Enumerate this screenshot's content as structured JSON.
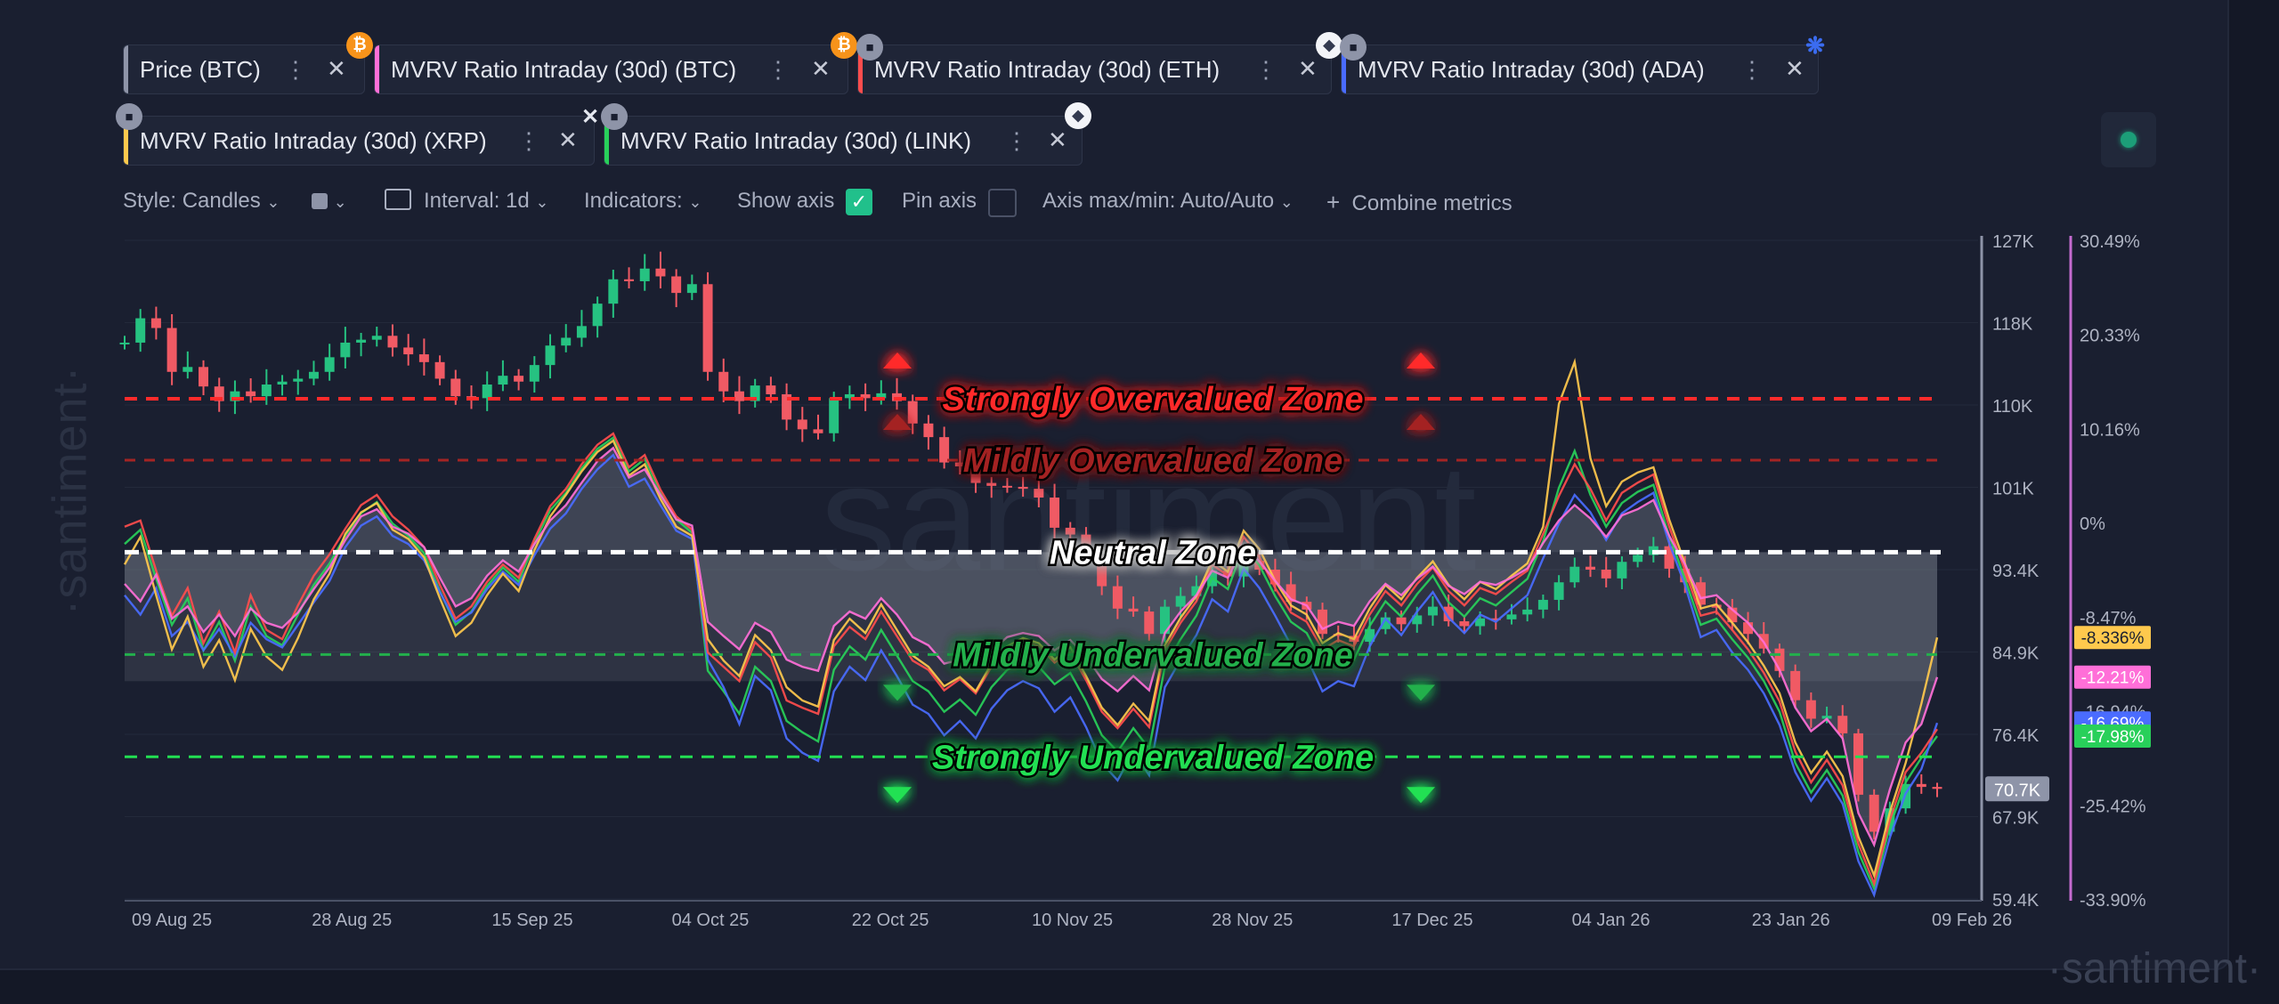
{
  "tabs": [
    {
      "label": "Price (BTC)",
      "color": "#8e94a8",
      "badge": "btc-icon"
    },
    {
      "label": "MVRV Ratio Intraday (30d) (BTC)",
      "color": "#ff6fd8",
      "badge": "btc-icon"
    },
    {
      "label": "MVRV Ratio Intraday (30d) (ETH)",
      "color": "#ff4d4d",
      "badge": "eth-icon"
    },
    {
      "label": "MVRV Ratio Intraday (30d) (ADA)",
      "color": "#4a6cff",
      "badge": "ada-icon"
    },
    {
      "label": "MVRV Ratio Intraday (30d) (XRP)",
      "color": "#ffc94d",
      "badge": "xrp-icon"
    },
    {
      "label": "MVRV Ratio Intraday (30d) (LINK)",
      "color": "#28d05a",
      "badge": "link-icon"
    }
  ],
  "toolbar": {
    "style": "Style: Candles",
    "interval": "Interval: 1d",
    "indicators": "Indicators:",
    "show_axis": "Show axis",
    "show_axis_checked": true,
    "pin_axis": "Pin axis",
    "pin_axis_checked": false,
    "axis_range": "Axis max/min: Auto/Auto",
    "combine": "Combine metrics"
  },
  "watermark": "santiment",
  "colors": {
    "bg": "#1a1f30",
    "candle_up": "#26c281",
    "candle_down": "#f05a64",
    "btc": "#ff6fd8",
    "eth": "#ff4d4d",
    "ada": "#4a6cff",
    "xrp": "#ffc94d",
    "link": "#28d05a"
  },
  "chart_data": {
    "type": "line",
    "x_labels": [
      "09 Aug 25",
      "28 Aug 25",
      "15 Sep 25",
      "04 Oct 25",
      "22 Oct 25",
      "10 Nov 25",
      "28 Nov 25",
      "17 Dec 25",
      "04 Jan 26",
      "23 Jan 26",
      "09 Feb 26"
    ],
    "price_axis": {
      "ticks": [
        "127K",
        "118K",
        "110K",
        "101K",
        "93.4K",
        "84.9K",
        "76.4K",
        "67.9K",
        "59.4K"
      ],
      "range": [
        59400,
        127000
      ]
    },
    "mvrv_axis": {
      "ticks": [
        "30.49%",
        "20.33%",
        "10.16%",
        "0%",
        "-8.47%",
        "-16.94%",
        "-25.42%",
        "-33.90%"
      ],
      "range": [
        -33.9,
        30.49
      ]
    },
    "price_last_label": "70.7K",
    "price_last": 70700,
    "zones": [
      {
        "label": "Strongly Overvalued Zone",
        "value": 15,
        "color": "#ff2b2b",
        "arrow": "up"
      },
      {
        "label": "Mildly Overvalued Zone",
        "value": 9,
        "color": "#a42424",
        "arrow": "up"
      },
      {
        "label": "Neutral Zone",
        "value": 0,
        "color": "#ffffff",
        "arrow": "none"
      },
      {
        "label": "Mildly Undervalued Zone",
        "value": -10,
        "color": "#23b04c",
        "arrow": "down"
      },
      {
        "label": "Strongly Undervalued Zone",
        "value": -20,
        "color": "#22e052",
        "arrow": "down"
      }
    ],
    "series_last_labels": [
      {
        "name": "XRP",
        "label": "-8.336%",
        "value": -8.336,
        "color": "#ffc94d"
      },
      {
        "name": "BTC",
        "label": "-12.21%",
        "value": -12.21,
        "color": "#ff6fd8"
      },
      {
        "name": "ADA",
        "label": "-16.69%",
        "value": -16.69,
        "color": "#4a6cff"
      },
      {
        "name": "LINK",
        "label": "-17.98%",
        "value": -17.98,
        "color": "#28d05a"
      }
    ],
    "price_btc": [
      116500,
      119000,
      118000,
      113500,
      114000,
      112000,
      110500,
      111500,
      111000,
      112200,
      112500,
      112800,
      113500,
      115000,
      116500,
      116800,
      117200,
      116000,
      115300,
      114500,
      112800,
      111000,
      110800,
      112200,
      113100,
      112500,
      114200,
      116200,
      117000,
      118200,
      120500,
      123000,
      122800,
      124100,
      123300,
      121600,
      122500,
      113500,
      111500,
      110500,
      112100,
      111200,
      108600,
      107600,
      107200,
      110800,
      111200,
      110800,
      111300,
      110500,
      108200,
      106800,
      104200,
      103800,
      102100,
      101800,
      101700,
      101500,
      100600,
      97500,
      96800,
      94500,
      91500,
      89200,
      88900,
      86600,
      89400,
      90500,
      91500,
      93100,
      92500,
      94100,
      93200,
      91700,
      89900,
      89100,
      86600,
      86400,
      85800,
      87100,
      88300,
      87600,
      88500,
      89400,
      87900,
      87400,
      88200,
      88100,
      88600,
      89100,
      90100,
      91900,
      93500,
      93200,
      92300,
      94000,
      94700,
      95600,
      93300,
      91900,
      89600,
      89300,
      87800,
      86600,
      85100,
      82800,
      79800,
      77900,
      78200,
      76400,
      70100,
      66300,
      68700,
      71200,
      70900,
      70700
    ],
    "mvrv_btc": [
      -3.1,
      -4.8,
      -2.2,
      -6.5,
      -5.3,
      -7.8,
      -6.1,
      -8.2,
      -5.5,
      -6.9,
      -7.4,
      -5.9,
      -3.6,
      -1.5,
      1.2,
      3.5,
      4.2,
      2.5,
      1.8,
      0.5,
      -2.5,
      -5.3,
      -4.5,
      -2.3,
      -0.8,
      -1.9,
      0.8,
      3.1,
      4.6,
      6.8,
      8.9,
      10.2,
      7.3,
      8.1,
      5.6,
      3.2,
      2.6,
      -6.8,
      -8.2,
      -9.5,
      -6.9,
      -7.8,
      -10.5,
      -11.2,
      -11.6,
      -7.2,
      -5.8,
      -6.5,
      -4.5,
      -6.1,
      -8.3,
      -9.1,
      -10.9,
      -10.5,
      -11.2,
      -9.6,
      -8.3,
      -7.9,
      -8.2,
      -9.6,
      -8.6,
      -10.2,
      -12.4,
      -13.6,
      -12.1,
      -13.5,
      -7.9,
      -5.8,
      -4.2,
      -1.8,
      -2.5,
      0.6,
      -0.9,
      -2.8,
      -4.6,
      -5.2,
      -7.5,
      -6.8,
      -7.2,
      -4.8,
      -3.1,
      -4.2,
      -2.6,
      -1.4,
      -3.3,
      -4.1,
      -2.9,
      -3.2,
      -2.5,
      -1.6,
      0.9,
      3.1,
      4.6,
      3.3,
      1.5,
      3.6,
      4.2,
      5.1,
      1.6,
      -1.2,
      -4.5,
      -4.2,
      -5.6,
      -6.9,
      -8.8,
      -11.5,
      -15.2,
      -17.5,
      -16.3,
      -18.2,
      -25.5,
      -28.6,
      -23.2,
      -18.6,
      -16.8,
      -12.21
    ],
    "mvrv_eth": [
      2.5,
      3.1,
      -1.8,
      -6.2,
      -3.5,
      -8.9,
      -5.8,
      -9.8,
      -4.2,
      -7.6,
      -8.5,
      -5.2,
      -2.3,
      -0.2,
      2.3,
      4.6,
      5.6,
      3.5,
      2.2,
      0.5,
      -3.2,
      -6.5,
      -5.3,
      -2.9,
      -1.2,
      -2.5,
      1.3,
      4.5,
      6.2,
      8.6,
      10.5,
      11.6,
      8.3,
      9.5,
      6.1,
      3.5,
      2.2,
      -9.8,
      -11.2,
      -12.6,
      -8.8,
      -10.3,
      -14.5,
      -15.2,
      -15.8,
      -9.2,
      -7.3,
      -8.5,
      -5.8,
      -8.2,
      -10.6,
      -11.5,
      -13.5,
      -12.4,
      -13.8,
      -11.2,
      -9.5,
      -8.6,
      -9.2,
      -10.8,
      -9.8,
      -12.5,
      -15.6,
      -17.2,
      -15.3,
      -17.1,
      -9.6,
      -6.9,
      -4.8,
      -1.2,
      -2.3,
      1.5,
      -0.5,
      -3.5,
      -5.9,
      -6.8,
      -9.5,
      -8.6,
      -9.2,
      -6.1,
      -3.8,
      -5.2,
      -3.1,
      -1.5,
      -3.8,
      -5.2,
      -3.5,
      -4.1,
      -2.9,
      -1.8,
      1.8,
      5.5,
      8.6,
      6.2,
      3.1,
      5.8,
      6.8,
      7.6,
      2.5,
      -1.8,
      -6.2,
      -5.8,
      -7.6,
      -9.5,
      -11.8,
      -14.6,
      -19.5,
      -22.5,
      -20.3,
      -22.8,
      -28.5,
      -32.4,
      -26.2,
      -21.5,
      -19.6,
      -17.3
    ],
    "mvrv_ada": [
      -4.2,
      -6.1,
      -3.5,
      -8.2,
      -6.8,
      -9.6,
      -7.5,
      -10.2,
      -6.9,
      -8.5,
      -9.3,
      -7.1,
      -4.9,
      -2.8,
      0.5,
      2.6,
      3.5,
      1.6,
      0.8,
      -0.8,
      -3.9,
      -6.8,
      -5.9,
      -3.6,
      -1.9,
      -3.2,
      -0.3,
      2.3,
      3.8,
      6.2,
      8.1,
      9.5,
      6.4,
      7.2,
      4.6,
      2.1,
      1.3,
      -10.5,
      -13.2,
      -16.8,
      -12.1,
      -13.5,
      -18.2,
      -19.6,
      -20.4,
      -13.6,
      -11.2,
      -12.5,
      -9.6,
      -12.1,
      -14.9,
      -15.8,
      -17.9,
      -16.5,
      -18.2,
      -15.3,
      -13.5,
      -12.6,
      -13.3,
      -15.6,
      -14.2,
      -17.1,
      -20.6,
      -22.3,
      -19.5,
      -21.8,
      -13.2,
      -10.5,
      -8.1,
      -4.6,
      -5.8,
      -1.6,
      -3.5,
      -6.2,
      -9.1,
      -10.3,
      -13.6,
      -12.6,
      -13.1,
      -9.2,
      -6.5,
      -8.1,
      -5.8,
      -3.9,
      -6.4,
      -7.9,
      -6.1,
      -6.8,
      -5.5,
      -4.2,
      -0.6,
      2.8,
      5.6,
      3.9,
      1.2,
      3.8,
      4.9,
      5.8,
      0.9,
      -3.2,
      -8.3,
      -7.6,
      -9.8,
      -11.5,
      -13.8,
      -16.9,
      -21.5,
      -24.3,
      -22.1,
      -24.6,
      -30.2,
      -33.5,
      -27.9,
      -23.6,
      -21.2,
      -16.69
    ],
    "mvrv_xrp": [
      -1.2,
      1.5,
      -4.2,
      -9.5,
      -6.3,
      -11.2,
      -8.6,
      -12.5,
      -7.5,
      -10.2,
      -11.5,
      -8.4,
      -4.6,
      -2.1,
      1.8,
      3.9,
      4.8,
      2.2,
      1.3,
      -0.5,
      -4.5,
      -8.2,
      -6.9,
      -4.2,
      -2.1,
      -3.8,
      0.2,
      3.5,
      5.6,
      7.9,
      9.8,
      10.9,
      7.5,
      8.6,
      5.2,
      2.5,
      1.6,
      -8.5,
      -10.6,
      -12.1,
      -8.1,
      -9.6,
      -13.2,
      -14.5,
      -15.1,
      -8.6,
      -6.5,
      -7.9,
      -5.1,
      -7.6,
      -10.1,
      -11.2,
      -13.1,
      -12.2,
      -13.6,
      -10.9,
      -9.2,
      -8.4,
      -8.9,
      -10.5,
      -9.3,
      -12.1,
      -15.2,
      -16.9,
      -14.8,
      -16.5,
      -9.1,
      -6.4,
      -4.3,
      -0.8,
      -1.9,
      2.1,
      0.3,
      -2.8,
      -5.2,
      -6.1,
      -8.9,
      -7.9,
      -8.5,
      -5.5,
      -3.2,
      -4.6,
      -2.5,
      -0.9,
      -3.2,
      -4.6,
      -2.9,
      -3.6,
      -2.3,
      -1.1,
      2.5,
      14.5,
      18.6,
      9.2,
      4.5,
      6.9,
      7.8,
      8.3,
      3.2,
      -1.1,
      -5.5,
      -5.1,
      -6.9,
      -8.8,
      -11.1,
      -13.8,
      -18.6,
      -21.6,
      -19.5,
      -21.9,
      -27.8,
      -31.6,
      -25.4,
      -20.6,
      -14.8,
      -8.336
    ],
    "mvrv_link": [
      0.8,
      2.2,
      -2.6,
      -7.1,
      -4.5,
      -9.6,
      -6.8,
      -10.6,
      -5.3,
      -8.2,
      -9.1,
      -6.1,
      -3.2,
      -1.1,
      1.6,
      3.8,
      4.9,
      2.8,
      1.6,
      -0.1,
      -3.8,
      -7.1,
      -5.8,
      -3.3,
      -1.5,
      -2.9,
      0.9,
      4.1,
      5.8,
      8.2,
      10.1,
      11.2,
      7.9,
      9.1,
      5.8,
      3.2,
      1.9,
      -11.6,
      -13.6,
      -15.8,
      -11.2,
      -12.6,
      -16.5,
      -17.6,
      -18.5,
      -11.5,
      -9.2,
      -10.5,
      -7.6,
      -10.1,
      -12.6,
      -13.6,
      -15.6,
      -14.4,
      -15.9,
      -13.2,
      -11.5,
      -10.6,
      -11.2,
      -12.9,
      -11.8,
      -14.6,
      -17.9,
      -19.5,
      -17.2,
      -19.2,
      -11.2,
      -8.5,
      -6.2,
      -2.5,
      -3.6,
      0.6,
      -1.3,
      -4.3,
      -6.8,
      -7.9,
      -10.8,
      -9.9,
      -10.5,
      -7.2,
      -4.8,
      -6.3,
      -4.1,
      -2.3,
      -4.9,
      -6.3,
      -4.5,
      -5.2,
      -3.9,
      -2.6,
      1.1,
      6.3,
      9.9,
      5.6,
      2.5,
      4.8,
      5.9,
      6.6,
      1.6,
      -2.6,
      -7.1,
      -6.5,
      -8.5,
      -10.3,
      -12.6,
      -15.6,
      -20.6,
      -23.5,
      -21.3,
      -23.8,
      -29.3,
      -32.9,
      -26.8,
      -22.5,
      -20.1,
      -17.98
    ]
  }
}
